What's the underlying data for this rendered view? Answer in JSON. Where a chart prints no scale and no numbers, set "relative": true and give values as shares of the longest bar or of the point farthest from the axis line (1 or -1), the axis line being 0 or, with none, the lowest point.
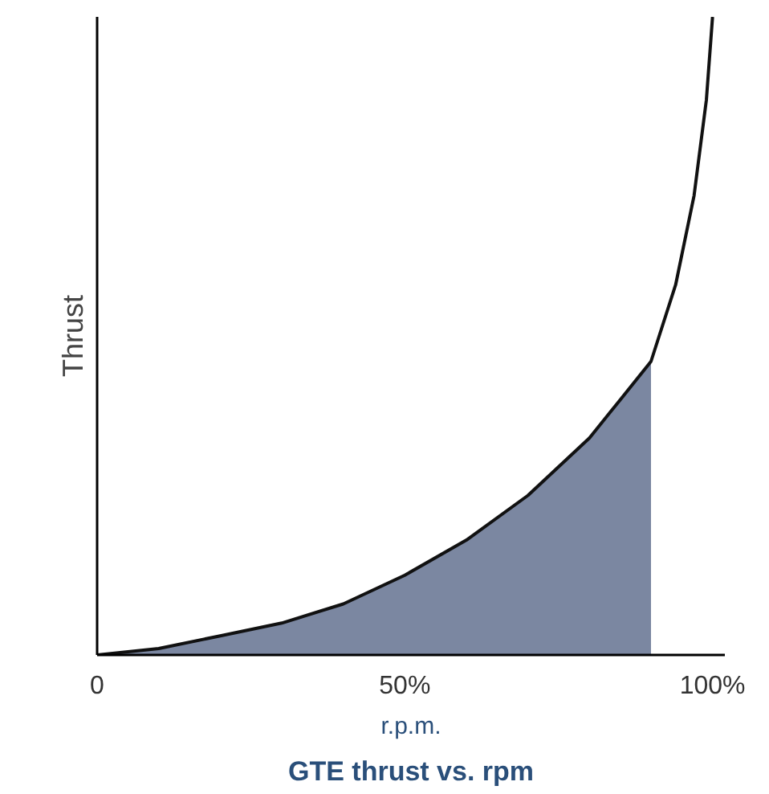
{
  "chart_data": {
    "type": "line",
    "title": "GTE thrust vs. rpm",
    "xlabel": "r.p.m.",
    "ylabel": "Thrust",
    "relative": true,
    "xlim": [
      0,
      102
    ],
    "xticks": [
      {
        "value": 0,
        "label": "0"
      },
      {
        "value": 50,
        "label": "50%"
      },
      {
        "value": 100,
        "label": "100%"
      }
    ],
    "grid": false,
    "marker": "none",
    "line_style": "solid",
    "series": [
      {
        "type": "area",
        "color": "#34466e",
        "x": [
          0,
          10,
          20,
          30,
          40,
          50,
          60,
          70,
          80,
          85,
          90
        ],
        "values": [
          0,
          0.01,
          0.03,
          0.05,
          0.08,
          0.125,
          0.18,
          0.25,
          0.34,
          0.4,
          0.46
        ]
      },
      {
        "color": "#111111",
        "x": [
          0,
          10,
          20,
          30,
          40,
          50,
          60,
          70,
          80,
          85,
          90,
          94,
          97,
          99,
          100
        ],
        "values": [
          0,
          0.01,
          0.03,
          0.05,
          0.08,
          0.125,
          0.18,
          0.25,
          0.34,
          0.4,
          0.46,
          0.58,
          0.72,
          0.87,
          1.0
        ]
      }
    ]
  }
}
